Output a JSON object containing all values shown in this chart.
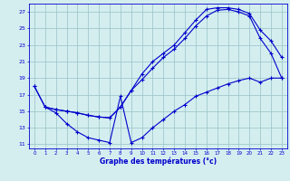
{
  "title": "Graphe des températures (°c)",
  "bg_color": "#d4eef0",
  "grid_color": "#a0c8cc",
  "line_color": "#0000cc",
  "xlim": [
    -0.5,
    23.5
  ],
  "ylim": [
    10.5,
    28.0
  ],
  "yticks": [
    11,
    13,
    15,
    17,
    19,
    21,
    23,
    25,
    27
  ],
  "xticks": [
    0,
    1,
    2,
    3,
    4,
    5,
    6,
    7,
    8,
    9,
    10,
    11,
    12,
    13,
    14,
    15,
    16,
    17,
    18,
    19,
    20,
    21,
    22,
    23
  ],
  "line1_x": [
    0,
    1,
    2,
    3,
    4,
    5,
    6,
    7,
    8,
    9,
    10,
    11,
    12,
    13,
    14,
    15,
    16,
    17,
    18,
    19,
    20,
    21,
    22,
    23
  ],
  "line1_y": [
    18.0,
    15.5,
    15.2,
    15.0,
    14.8,
    14.5,
    14.3,
    14.2,
    15.5,
    17.5,
    19.5,
    21.0,
    22.0,
    23.0,
    24.5,
    26.0,
    27.3,
    27.5,
    27.5,
    27.3,
    26.8,
    24.8,
    23.5,
    21.5
  ],
  "line2_x": [
    0,
    1,
    2,
    3,
    4,
    5,
    6,
    7,
    8,
    9,
    10,
    11,
    12,
    13,
    14,
    15,
    16,
    17,
    18,
    19,
    20,
    21,
    22,
    23
  ],
  "line2_y": [
    18.0,
    15.5,
    15.2,
    15.0,
    14.8,
    14.5,
    14.3,
    14.2,
    15.5,
    17.5,
    18.8,
    20.2,
    21.5,
    22.5,
    23.8,
    25.3,
    26.5,
    27.2,
    27.3,
    27.0,
    26.5,
    23.8,
    22.0,
    19.0
  ],
  "line3_x": [
    1,
    2,
    3,
    4,
    5,
    6,
    7,
    8,
    9,
    10,
    11,
    12,
    13,
    14,
    15,
    16,
    17,
    18,
    19,
    20,
    21,
    22,
    23
  ],
  "line3_y": [
    15.5,
    14.8,
    13.5,
    12.5,
    11.8,
    11.5,
    11.2,
    16.8,
    11.2,
    11.8,
    13.0,
    14.0,
    15.0,
    15.8,
    16.8,
    17.3,
    17.8,
    18.3,
    18.7,
    19.0,
    18.5,
    19.0,
    19.0
  ]
}
